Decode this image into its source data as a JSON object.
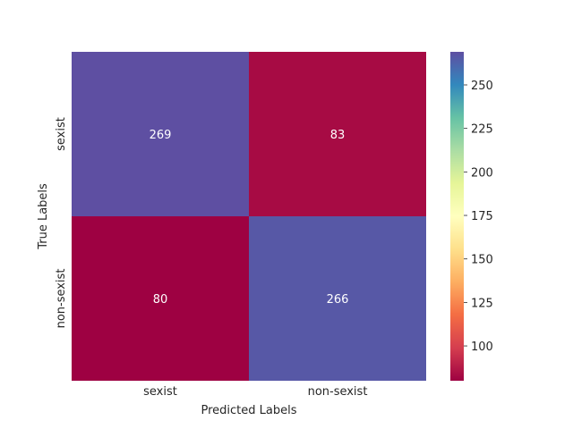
{
  "chart_data": {
    "type": "heatmap",
    "title": "",
    "xlabel": "Predicted Labels",
    "ylabel": "True Labels",
    "x_categories": [
      "sexist",
      "non-sexist"
    ],
    "y_categories": [
      "sexist",
      "non-sexist"
    ],
    "values": [
      [
        269,
        83
      ],
      [
        80,
        266
      ]
    ],
    "annotations": true,
    "colormap": "Spectral",
    "vmin": 80,
    "vmax": 269,
    "colorbar": {
      "ticks": [
        "100",
        "125",
        "150",
        "175",
        "200",
        "225",
        "250"
      ],
      "tick_values": [
        100,
        125,
        150,
        175,
        200,
        225,
        250
      ]
    }
  }
}
